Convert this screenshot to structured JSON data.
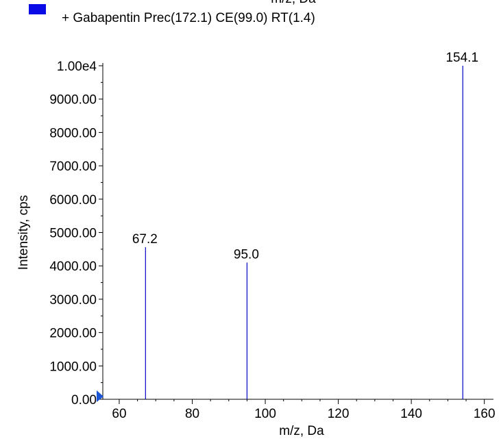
{
  "chart_data": {
    "type": "bar",
    "title": "",
    "cropped_top_label": "m/z, Da",
    "legend": {
      "swatch_color": "#0a0ae6",
      "label": "+ Gabapentin Prec(172.1) CE(99.0) RT(1.4)",
      "placement": "top-left"
    },
    "xlabel": "m/z, Da",
    "ylabel": "Intensity, cps",
    "xlim": [
      55.5,
      162.5
    ],
    "ylim": [
      0,
      10000
    ],
    "x_ticks": [
      60,
      80,
      100,
      120,
      140,
      160
    ],
    "x_tick_labels": [
      "60",
      "80",
      "100",
      "120",
      "140",
      "160"
    ],
    "y_ticks": [
      0,
      1000,
      2000,
      3000,
      4000,
      5000,
      6000,
      7000,
      8000,
      9000,
      10000
    ],
    "y_tick_labels": [
      "0.00",
      "1000.00",
      "2000.00",
      "3000.00",
      "4000.00",
      "5000.00",
      "6000.00",
      "7000.00",
      "8000.00",
      "9000.00",
      "1.00e4"
    ],
    "peaks": [
      {
        "x": 67.2,
        "y": 4560,
        "label": "67.2"
      },
      {
        "x": 95.0,
        "y": 4100,
        "label": "95.0"
      },
      {
        "x": 154.1,
        "y": 10000,
        "label": "154.1"
      }
    ],
    "series_color": "#0000cc",
    "grid": false
  }
}
